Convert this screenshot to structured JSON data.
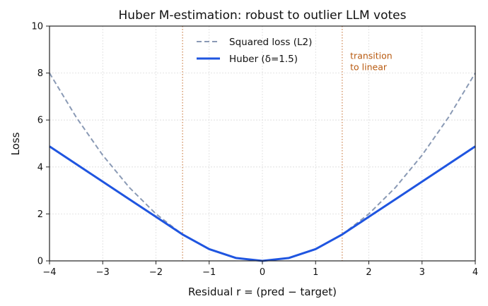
{
  "chart_data": {
    "type": "line",
    "title": "Huber M-estimation: robust to outlier LLM votes",
    "xlabel": "Residual r = (pred − target)",
    "ylabel": "Loss",
    "xlim": [
      -4,
      4
    ],
    "ylim": [
      0,
      10
    ],
    "xticks": [
      -4,
      -3,
      -2,
      -1,
      0,
      1,
      2,
      3,
      4
    ],
    "xtick_labels": [
      "−4",
      "−3",
      "−2",
      "−1",
      "0",
      "1",
      "2",
      "3",
      "4"
    ],
    "yticks": [
      0,
      2,
      4,
      6,
      8,
      10
    ],
    "ytick_labels": [
      "0",
      "2",
      "4",
      "6",
      "8",
      "10"
    ],
    "grid": true,
    "legend_position": "top-center",
    "delta": 1.5,
    "series": [
      {
        "name": "Squared loss (L2)",
        "style": "dashed",
        "color": "#8a9ab5",
        "x": [
          -4,
          -3.5,
          -3,
          -2.5,
          -2,
          -1.5,
          -1,
          -0.5,
          0,
          0.5,
          1,
          1.5,
          2,
          2.5,
          3,
          3.5,
          4
        ],
        "y": [
          8,
          6.125,
          4.5,
          3.125,
          2,
          1.125,
          0.5,
          0.125,
          0,
          0.125,
          0.5,
          1.125,
          2,
          3.125,
          4.5,
          6.125,
          8
        ]
      },
      {
        "name": "Huber (δ=1.5)",
        "style": "solid",
        "color": "#1f55e0",
        "x": [
          -4,
          -3.5,
          -3,
          -2.5,
          -2,
          -1.5,
          -1,
          -0.5,
          0,
          0.5,
          1,
          1.5,
          2,
          2.5,
          3,
          3.5,
          4
        ],
        "y": [
          4.875,
          4.125,
          3.375,
          2.625,
          1.875,
          1.125,
          0.5,
          0.125,
          0,
          0.125,
          0.5,
          1.125,
          1.875,
          2.625,
          3.375,
          4.125,
          4.875
        ]
      }
    ],
    "vlines": [
      {
        "x": -1.5,
        "style": "dotted",
        "color": "#c8763a"
      },
      {
        "x": 1.5,
        "style": "dotted",
        "color": "#c8763a"
      }
    ],
    "annotations": [
      {
        "text_lines": [
          "transition",
          "to linear"
        ],
        "x": 1.65,
        "y": 8.6,
        "color": "#b85a10"
      }
    ]
  }
}
